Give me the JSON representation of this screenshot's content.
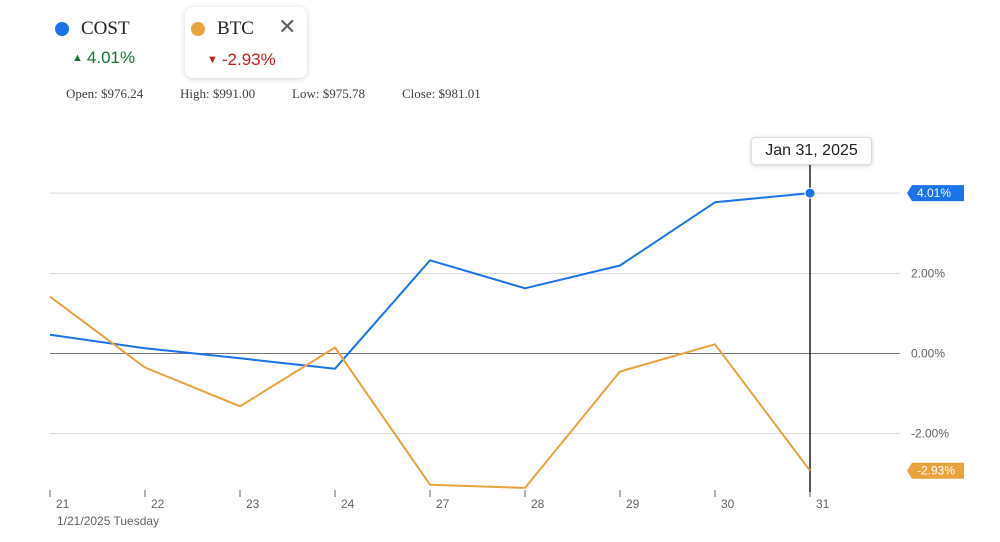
{
  "legend": {
    "cost": {
      "symbol": "COST",
      "change": "4.01%",
      "direction": "up",
      "color": "#1a73e8",
      "change_color": "#137333"
    },
    "btc": {
      "symbol": "BTC",
      "change": "-2.93%",
      "direction": "down",
      "color": "#e8a33d",
      "change_color": "#c5221f"
    },
    "close_icon": "close-icon",
    "close_glyph": "✕"
  },
  "ohlc": {
    "open": "Open: $976.24",
    "high": "High: $991.00",
    "low": "Low: $975.78",
    "close": "Close: $981.01"
  },
  "tooltip": {
    "date": "Jan 31, 2025"
  },
  "x_subtitle": "1/21/2025 Tuesday",
  "chart_data": {
    "type": "line",
    "x": [
      "21",
      "22",
      "23",
      "24",
      "27",
      "28",
      "29",
      "30",
      "31"
    ],
    "ylim": [
      -3.4,
      4.7
    ],
    "y_ticks": [
      {
        "value": 2,
        "label": "2.00%"
      },
      {
        "value": 0,
        "label": "0.00%"
      },
      {
        "value": -2,
        "label": "-2.00%"
      }
    ],
    "series": [
      {
        "name": "COST",
        "color": "#1a73e8",
        "values": [
          0.47,
          0.13,
          -0.12,
          -0.38,
          2.33,
          1.63,
          2.2,
          3.78,
          4.01
        ],
        "end_label": "4.01%"
      },
      {
        "name": "BTC",
        "color": "#e8a33d",
        "values": [
          1.42,
          -0.35,
          -1.32,
          0.15,
          -3.28,
          -3.36,
          -0.45,
          0.23,
          -2.93
        ],
        "end_label": "-2.93%"
      }
    ],
    "crosshair_index": 8,
    "grid": true
  }
}
